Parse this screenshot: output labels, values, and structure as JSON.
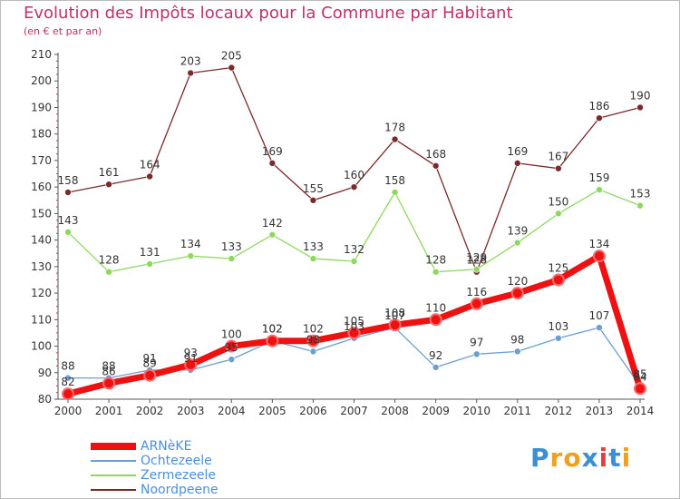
{
  "title": "Evolution des Impôts locaux pour la Commune par Habitant",
  "subtitle": "(en € et par an)",
  "logo": {
    "letters": [
      "P",
      "r",
      "o",
      "x",
      "i",
      "t",
      "i"
    ],
    "colors": [
      "#3a8fd8",
      "#f0a020",
      "#f0a020",
      "#3a8fd8",
      "#e04040",
      "#3a8fd8",
      "#f0a020"
    ]
  },
  "chart_data": {
    "type": "line",
    "x": [
      "2000",
      "2001",
      "2002",
      "2003",
      "2004",
      "2005",
      "2006",
      "2007",
      "2008",
      "2009",
      "2010",
      "2011",
      "2012",
      "2013",
      "2014"
    ],
    "ylim": [
      80,
      210
    ],
    "yticks": [
      "80",
      "90",
      "100",
      "110",
      "120",
      "130",
      "140",
      "150",
      "160",
      "170",
      "180",
      "190",
      "200",
      "210"
    ],
    "grid": false,
    "legend": "bottom-left",
    "series": [
      {
        "name": "ARNèKE",
        "color": "#ee1111",
        "values": [
          82,
          86,
          89,
          93,
          100,
          102,
          102,
          105,
          108,
          110,
          116,
          120,
          125,
          134,
          84
        ],
        "labels": [
          "82",
          "86",
          "89",
          "93",
          "100",
          "102",
          "102",
          "105",
          "108",
          "110",
          "116",
          "120",
          "125",
          "134",
          "84"
        ]
      },
      {
        "name": "Ochtezeele",
        "color": "#6a9fd0",
        "values": [
          88,
          88,
          91,
          91,
          95,
          102,
          98,
          103,
          107,
          92,
          97,
          98,
          103,
          107,
          85
        ],
        "labels": [
          "88",
          "88",
          "91",
          "91",
          "95",
          "102",
          "98",
          "103",
          "107",
          "92",
          "97",
          "98",
          "103",
          "107",
          "85"
        ]
      },
      {
        "name": "Zermezeele",
        "color": "#8fd860",
        "values": [
          143,
          128,
          131,
          134,
          133,
          142,
          133,
          132,
          158,
          128,
          129,
          139,
          150,
          159,
          153
        ],
        "labels": [
          "143",
          "128",
          "131",
          "134",
          "133",
          "142",
          "133",
          "132",
          "158",
          "128",
          "129",
          "139",
          "150",
          "159",
          "153"
        ]
      },
      {
        "name": "Noordpeene",
        "color": "#7a2a2a",
        "values": [
          158,
          161,
          164,
          203,
          205,
          169,
          155,
          160,
          178,
          168,
          128,
          169,
          167,
          186,
          190
        ],
        "labels": [
          "158",
          "161",
          "164",
          "203",
          "205",
          "169",
          "155",
          "160",
          "178",
          "168",
          "128",
          "169",
          "167",
          "186",
          "190"
        ]
      }
    ]
  }
}
